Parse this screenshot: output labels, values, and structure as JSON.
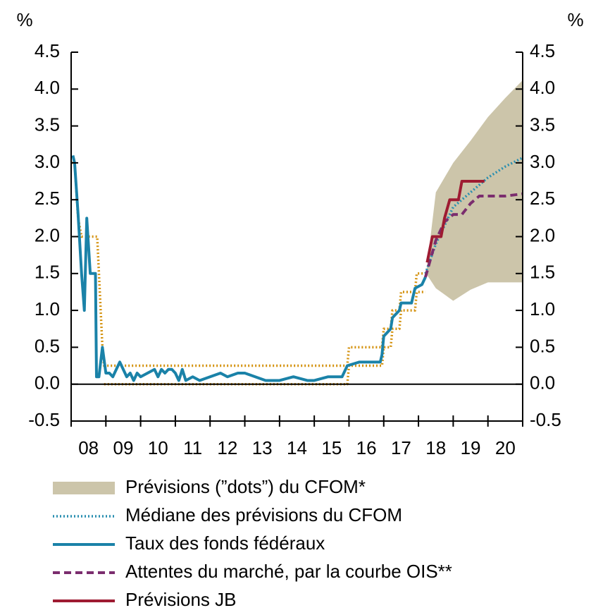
{
  "chart_data": {
    "type": "line",
    "y_unit": "%",
    "xlim": [
      2008,
      2021
    ],
    "xtick_marks": [
      2008,
      2009,
      2010,
      2011,
      2012,
      2013,
      2014,
      2015,
      2016,
      2017,
      2018,
      2019,
      2020,
      2021
    ],
    "xticks": [
      {
        "value": 2008.5,
        "label": "08"
      },
      {
        "value": 2009.5,
        "label": "09"
      },
      {
        "value": 2010.5,
        "label": "10"
      },
      {
        "value": 2011.5,
        "label": "11"
      },
      {
        "value": 2012.5,
        "label": "12"
      },
      {
        "value": 2013.5,
        "label": "13"
      },
      {
        "value": 2014.5,
        "label": "14"
      },
      {
        "value": 2015.5,
        "label": "15"
      },
      {
        "value": 2016.5,
        "label": "16"
      },
      {
        "value": 2017.5,
        "label": "17"
      },
      {
        "value": 2018.5,
        "label": "18"
      },
      {
        "value": 2019.5,
        "label": "19"
      },
      {
        "value": 2020.5,
        "label": "20"
      }
    ],
    "ylim": [
      -0.5,
      4.5
    ],
    "yticks": [
      4.5,
      {
        "value": 4,
        "label": "4.0"
      },
      3.5,
      {
        "value": 3,
        "label": "3.0"
      },
      2.5,
      {
        "value": 2,
        "label": "2.0"
      },
      1.5,
      {
        "value": 1,
        "label": "1.0"
      },
      0.5,
      {
        "value": 0,
        "label": "0.0"
      },
      -0.5
    ],
    "series": [
      {
        "name": "Prévisions (”dots”) du CFOM*",
        "style": "band",
        "color": "#ccc5aa",
        "x": [
          2018.22,
          2018.5,
          2019.0,
          2019.5,
          2020.0,
          2020.5,
          2021.0
        ],
        "lower": [
          1.5,
          1.3,
          1.13,
          1.28,
          1.38,
          1.38,
          1.38
        ],
        "upper": [
          1.5,
          2.6,
          3.0,
          3.3,
          3.62,
          3.88,
          4.12
        ]
      },
      {
        "style": "dotted",
        "color": "#d4920f",
        "x": [
          2008.0,
          2008.1,
          2008.2,
          2008.3,
          2008.75,
          2008.8,
          2008.85,
          2008.9,
          2008.95,
          2015.95,
          2016.0,
          2016.95,
          2017.0,
          2017.2,
          2017.25,
          2017.45,
          2017.5,
          2017.9,
          2017.95,
          2018.2
        ],
        "values": [
          3.0,
          3.0,
          2.25,
          2.0,
          2.0,
          1.5,
          1.0,
          0.5,
          0.25,
          0.25,
          0.5,
          0.5,
          0.75,
          0.75,
          1.0,
          1.0,
          1.25,
          1.25,
          1.5,
          1.5
        ]
      },
      {
        "style": "dotted",
        "color": "#d4920f",
        "x": [
          2008.95,
          2015.95,
          2016.0,
          2016.95,
          2017.0,
          2017.2,
          2017.25,
          2017.45,
          2017.5,
          2017.9,
          2017.95,
          2018.2
        ],
        "values": [
          0.0,
          0.0,
          0.25,
          0.25,
          0.5,
          0.5,
          0.75,
          0.75,
          1.0,
          1.0,
          1.25,
          1.25
        ]
      },
      {
        "name": "Médiane des prévisions du CFOM",
        "style": "dotted",
        "color": "#2a8fb0",
        "x": [
          2018.2,
          2018.5,
          2019.0,
          2019.5,
          2020.0,
          2020.5,
          2021.0
        ],
        "values": [
          1.5,
          1.9,
          2.4,
          2.6,
          2.8,
          2.95,
          3.07
        ]
      },
      {
        "name": "Taux des fonds fédéraux",
        "style": "solid",
        "color": "#1a82a8",
        "x": [
          2008.05,
          2008.1,
          2008.2,
          2008.3,
          2008.38,
          2008.45,
          2008.55,
          2008.7,
          2008.73,
          2008.8,
          2008.9,
          2009.0,
          2009.1,
          2009.2,
          2009.3,
          2009.4,
          2009.5,
          2009.6,
          2009.7,
          2009.8,
          2009.9,
          2010.0,
          2010.2,
          2010.4,
          2010.5,
          2010.6,
          2010.7,
          2010.8,
          2010.9,
          2011.0,
          2011.1,
          2011.2,
          2011.3,
          2011.5,
          2011.7,
          2012.0,
          2012.3,
          2012.5,
          2012.8,
          2013.0,
          2013.3,
          2013.6,
          2014.0,
          2014.4,
          2014.8,
          2015.0,
          2015.4,
          2015.8,
          2015.95,
          2016.3,
          2016.9,
          2016.95,
          2017.0,
          2017.2,
          2017.25,
          2017.45,
          2017.5,
          2017.8,
          2017.9,
          2018.1,
          2018.2
        ],
        "values": [
          3.1,
          3.0,
          2.3,
          1.5,
          1.0,
          2.25,
          1.5,
          1.5,
          0.1,
          0.1,
          0.5,
          0.15,
          0.15,
          0.1,
          0.2,
          0.3,
          0.2,
          0.1,
          0.15,
          0.05,
          0.15,
          0.1,
          0.15,
          0.2,
          0.1,
          0.2,
          0.15,
          0.2,
          0.2,
          0.15,
          0.05,
          0.2,
          0.05,
          0.1,
          0.05,
          0.1,
          0.15,
          0.1,
          0.15,
          0.15,
          0.1,
          0.05,
          0.05,
          0.1,
          0.05,
          0.05,
          0.1,
          0.1,
          0.25,
          0.3,
          0.3,
          0.4,
          0.65,
          0.75,
          0.9,
          1.0,
          1.1,
          1.1,
          1.3,
          1.35,
          1.45
        ]
      },
      {
        "name": "Attentes du marché, par la courbe OIS**",
        "style": "dashed",
        "color": "#7b2d6e",
        "x": [
          2018.2,
          2018.5,
          2018.75,
          2019.0,
          2019.25,
          2019.5,
          2019.75,
          2020.0,
          2020.5,
          2021.0
        ],
        "values": [
          1.45,
          1.95,
          2.2,
          2.3,
          2.3,
          2.45,
          2.55,
          2.55,
          2.55,
          2.58
        ]
      },
      {
        "name": "Prévisions JB",
        "style": "solid",
        "color": "#9e1b32",
        "x": [
          2018.25,
          2018.4,
          2018.65,
          2018.75,
          2018.9,
          2019.15,
          2019.25,
          2019.9
        ],
        "values": [
          1.65,
          2.0,
          2.0,
          2.25,
          2.5,
          2.5,
          2.75,
          2.75
        ]
      }
    ]
  }
}
